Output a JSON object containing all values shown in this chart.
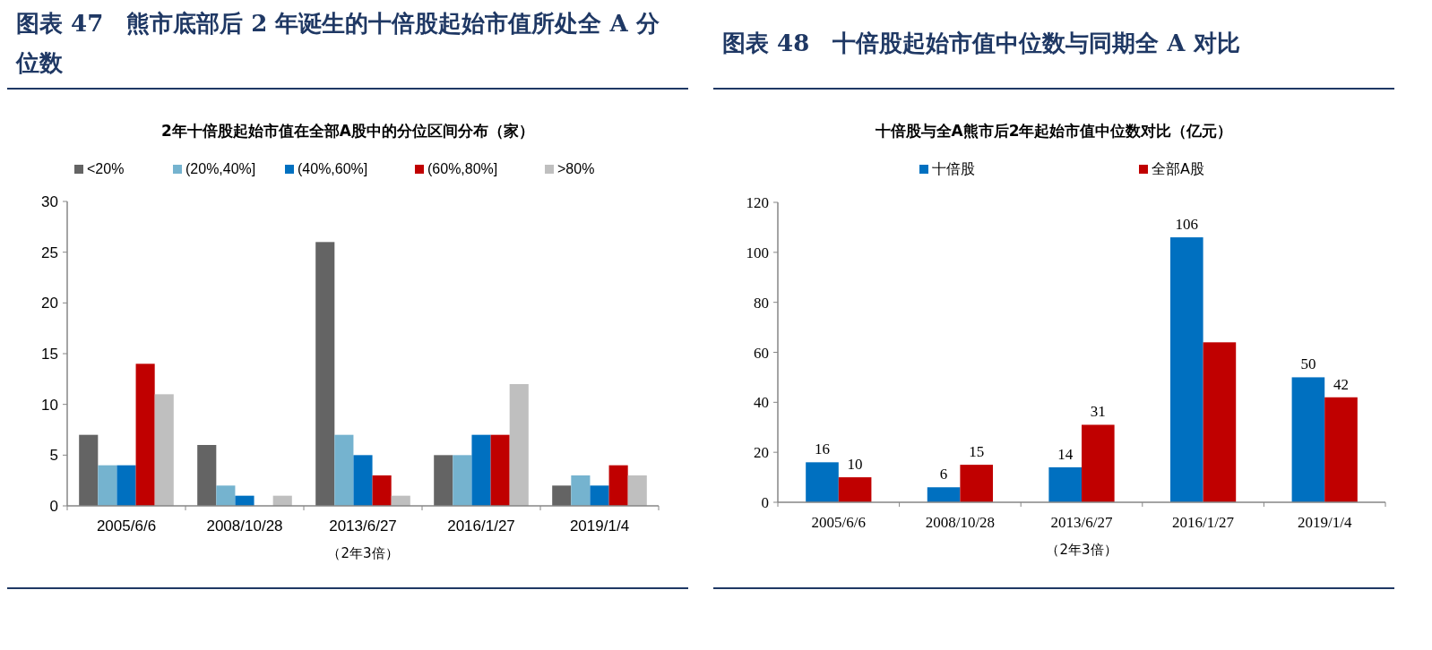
{
  "chart_data": [
    {
      "type": "bar",
      "title": "图表 47　熊市底部后 2 年诞生的十倍股起始市值所处全 A 分位数",
      "subtitle": "2年十倍股起始市值在全部A股中的分位区间分布（家）",
      "xlabel": "（2年3倍）",
      "legend": "top",
      "grid": false,
      "categories": [
        "2005/6/6",
        "2008/10/28",
        "2013/6/27",
        "2016/1/27",
        "2019/1/4"
      ],
      "ylim": [
        0,
        30
      ],
      "yticks": [
        0,
        5,
        10,
        15,
        20,
        25,
        30
      ],
      "series": [
        {
          "name": "<20%",
          "color": "#646464",
          "values": [
            7,
            6,
            26,
            5,
            2
          ]
        },
        {
          "name": "(20%,40%]",
          "color": "#75b3cf",
          "values": [
            4,
            2,
            7,
            5,
            3
          ]
        },
        {
          "name": "(40%,60%]",
          "color": "#0070c0",
          "values": [
            4,
            1,
            5,
            7,
            2
          ]
        },
        {
          "name": "(60%,80%]",
          "color": "#c00000",
          "values": [
            14,
            0,
            3,
            7,
            4
          ]
        },
        {
          "name": ">80%",
          "color": "#bfbfbf",
          "values": [
            11,
            1,
            1,
            12,
            3
          ]
        }
      ]
    },
    {
      "type": "bar",
      "title": "图表 48　十倍股起始市值中位数与同期全 A 对比",
      "subtitle": "十倍股与全A熊市后2年起始市值中位数对比（亿元）",
      "xlabel": "（2年3倍）",
      "legend": "top",
      "grid": false,
      "categories": [
        "2005/6/6",
        "2008/10/28",
        "2013/6/27",
        "2016/1/27",
        "2019/1/4"
      ],
      "ylim": [
        0,
        120
      ],
      "yticks": [
        0,
        20,
        40,
        60,
        80,
        100,
        120
      ],
      "series": [
        {
          "name": "十倍股",
          "color": "#0070c0",
          "values": [
            16,
            6,
            14,
            106,
            50
          ],
          "value_labels": [
            "16",
            "6",
            "14",
            "106",
            "50"
          ]
        },
        {
          "name": "全部A股",
          "color": "#c00000",
          "values": [
            10,
            15,
            31,
            64,
            42
          ],
          "value_labels": [
            "10",
            "15",
            "31",
            null,
            "42"
          ]
        }
      ]
    }
  ]
}
